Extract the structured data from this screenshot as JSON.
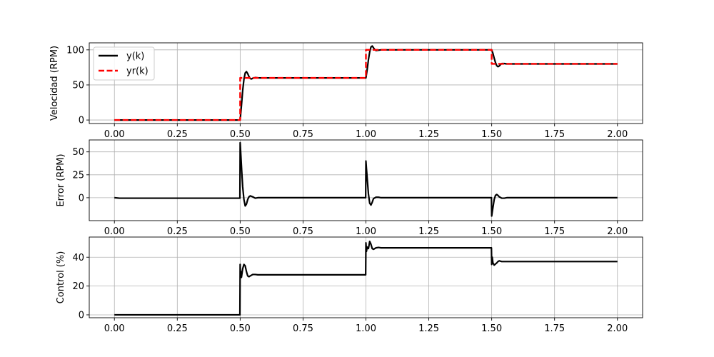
{
  "chart_data": [
    {
      "type": "line",
      "ylabel": "Velocidad (RPM)",
      "xlim": [
        -0.1,
        2.1
      ],
      "ylim": [
        -5,
        110
      ],
      "xticks": [
        0.0,
        0.25,
        0.5,
        0.75,
        1.0,
        1.25,
        1.5,
        1.75,
        2.0
      ],
      "xtick_labels": [
        "0.00",
        "0.25",
        "0.50",
        "0.75",
        "1.00",
        "1.25",
        "1.50",
        "1.75",
        "2.00"
      ],
      "yticks": [
        0,
        50,
        100
      ],
      "ytick_labels": [
        "0",
        "50",
        "100"
      ],
      "grid": true,
      "legend": "top-left",
      "series": [
        {
          "name": "y(k)",
          "color": "#000000",
          "style": "solid",
          "x": [
            0,
            0.5,
            0.505,
            0.51,
            0.515,
            0.52,
            0.525,
            0.53,
            0.535,
            0.54,
            0.545,
            0.55,
            0.56,
            0.57,
            0.58,
            1.0,
            1.005,
            1.01,
            1.015,
            1.02,
            1.025,
            1.03,
            1.035,
            1.04,
            1.05,
            1.06,
            1.5,
            1.505,
            1.51,
            1.515,
            1.52,
            1.525,
            1.53,
            1.535,
            1.54,
            1.55,
            1.56,
            2.0
          ],
          "y": [
            0,
            0,
            20,
            42,
            58,
            67,
            69,
            66,
            62,
            59,
            58.5,
            59.5,
            60.5,
            60.2,
            60,
            60,
            72,
            86,
            97,
            104,
            105.5,
            103,
            100.5,
            99,
            99.5,
            100,
            100,
            95,
            88,
            82,
            77.5,
            76,
            77,
            79,
            80.5,
            80.5,
            80,
            80
          ]
        },
        {
          "name": "yr(k)",
          "color": "#ff0000",
          "style": "dashed",
          "x": [
            0,
            0.5,
            0.5,
            1.0,
            1.0,
            1.5,
            1.5,
            2.0
          ],
          "y": [
            0,
            0,
            60,
            60,
            100,
            100,
            80,
            80
          ]
        }
      ]
    },
    {
      "type": "line",
      "ylabel": "Error (RPM)",
      "xlim": [
        -0.1,
        2.1
      ],
      "ylim": [
        -25,
        63
      ],
      "xticks": [
        0.0,
        0.25,
        0.5,
        0.75,
        1.0,
        1.25,
        1.5,
        1.75,
        2.0
      ],
      "xtick_labels": [
        "0.00",
        "0.25",
        "0.50",
        "0.75",
        "1.00",
        "1.25",
        "1.50",
        "1.75",
        "2.00"
      ],
      "yticks": [
        0,
        25,
        50
      ],
      "ytick_labels": [
        "0",
        "25",
        "50"
      ],
      "grid": true,
      "series": [
        {
          "color": "#000000",
          "style": "solid",
          "x": [
            0,
            0.02,
            0.499,
            0.5,
            0.502,
            0.506,
            0.51,
            0.515,
            0.52,
            0.525,
            0.53,
            0.535,
            0.54,
            0.55,
            0.56,
            0.57,
            0.58,
            0.999,
            1.0,
            1.002,
            1.006,
            1.01,
            1.015,
            1.02,
            1.025,
            1.03,
            1.04,
            1.05,
            1.06,
            1.499,
            1.5,
            1.502,
            1.506,
            1.51,
            1.515,
            1.52,
            1.525,
            1.53,
            1.54,
            1.55,
            1.56,
            2.0
          ],
          "y": [
            0,
            -0.5,
            -0.5,
            60,
            50,
            30,
            12,
            -2,
            -9,
            -7,
            -2,
            1,
            2,
            1,
            -0.5,
            0,
            0,
            0,
            40,
            32,
            18,
            4,
            -6,
            -8,
            -5,
            -1,
            0.5,
            0.5,
            0,
            0,
            -20,
            -16,
            -9,
            -2,
            2.5,
            3.5,
            2.5,
            1,
            -0.5,
            -0.5,
            0,
            0
          ]
        }
      ]
    },
    {
      "type": "line",
      "ylabel": "Control (%)",
      "xlim": [
        -0.1,
        2.1
      ],
      "ylim": [
        -2,
        54
      ],
      "xticks": [
        0.0,
        0.25,
        0.5,
        0.75,
        1.0,
        1.25,
        1.5,
        1.75,
        2.0
      ],
      "xtick_labels": [
        "0.00",
        "0.25",
        "0.50",
        "0.75",
        "1.00",
        "1.25",
        "1.50",
        "1.75",
        "2.00"
      ],
      "yticks": [
        0,
        20,
        40
      ],
      "ytick_labels": [
        "0",
        "20",
        "40"
      ],
      "grid": true,
      "series": [
        {
          "color": "#000000",
          "style": "solid",
          "x": [
            0,
            0.499,
            0.5,
            0.501,
            0.503,
            0.505,
            0.51,
            0.515,
            0.52,
            0.525,
            0.53,
            0.535,
            0.54,
            0.55,
            0.56,
            0.57,
            0.58,
            0.999,
            1.0,
            1.002,
            1.005,
            1.01,
            1.015,
            1.02,
            1.025,
            1.03,
            1.04,
            1.05,
            1.06,
            1.499,
            1.5,
            1.502,
            1.505,
            1.51,
            1.52,
            1.525,
            1.53,
            1.54,
            1.55,
            1.56,
            2.0
          ],
          "y": [
            0,
            0,
            35,
            28,
            30,
            26,
            32,
            35,
            34,
            30,
            27,
            26.5,
            27,
            28,
            28,
            27.8,
            27.8,
            27.8,
            50,
            44,
            47,
            46,
            51,
            49,
            46,
            45.5,
            46.5,
            46.8,
            46.5,
            46.5,
            35,
            40,
            36,
            34.5,
            36,
            37,
            37.5,
            37,
            37,
            37,
            37
          ]
        }
      ]
    }
  ]
}
